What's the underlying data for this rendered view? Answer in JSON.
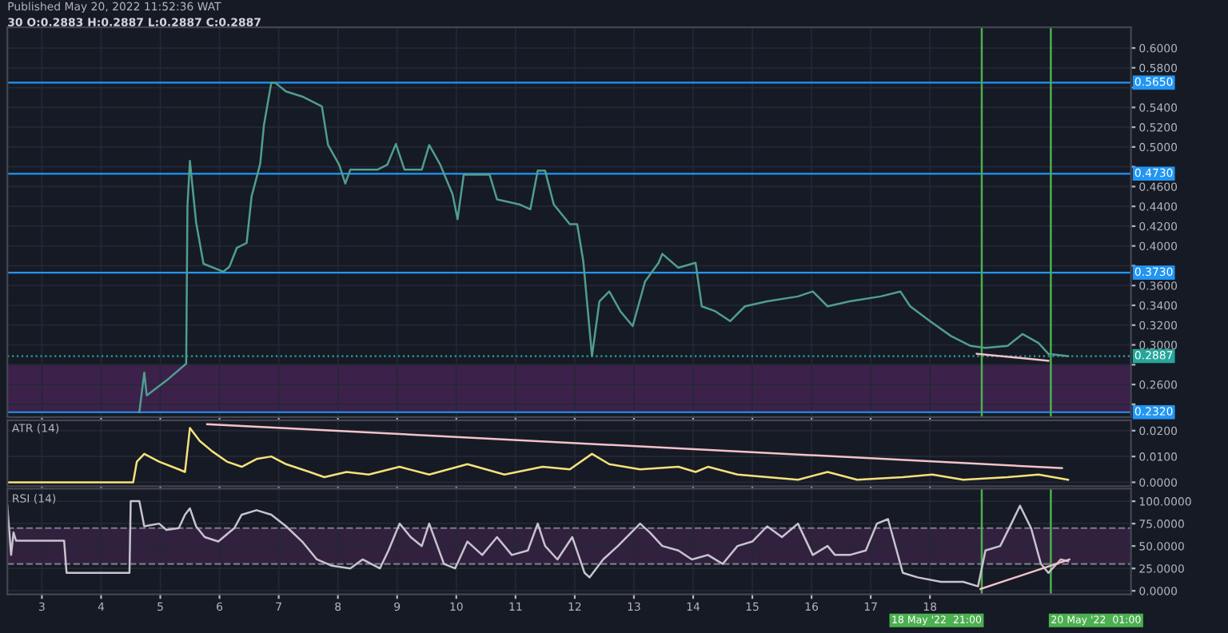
{
  "chart_data": [
    {
      "type": "line",
      "title": "Published May 20, 2022 11:52:36 WAT",
      "subtitle": "30 O:0.2883 H:0.2887 L:0.2887 C:0.2887",
      "x": [
        "2022-05-04T15:30",
        "2022-05-04T17:30",
        "2022-05-04T18:30",
        "2022-05-05T02:30",
        "2022-05-05T10:30",
        "2022-05-05T11:00",
        "2022-05-05T12:00",
        "2022-05-05T14:30",
        "2022-05-05T17:30",
        "2022-05-06T01:30",
        "2022-05-06T04:00",
        "2022-05-06T07:00",
        "2022-05-06T11:00",
        "2022-05-06T13:00",
        "2022-05-06T16:30",
        "2022-05-06T18:00",
        "2022-05-06T21:00",
        "2022-05-06T22:30",
        "2022-05-07T03:00",
        "2022-05-07T09:30",
        "2022-05-07T17:30",
        "2022-05-07T20:00",
        "2022-05-08T00:30",
        "2022-05-08T03:00",
        "2022-05-08T05:00",
        "2022-05-08T16:00",
        "2022-05-08T20:00",
        "2022-05-08T23:30",
        "2022-05-09T03:00",
        "2022-05-09T10:00",
        "2022-05-09T13:00",
        "2022-05-09T17:30",
        "2022-05-09T22:30",
        "2022-05-10T00:30",
        "2022-05-10T03:00",
        "2022-05-10T13:30",
        "2022-05-10T16:30",
        "2022-05-11T01:30",
        "2022-05-11T06:00",
        "2022-05-11T09:00",
        "2022-05-11T12:00",
        "2022-05-11T15:30",
        "2022-05-11T22:00",
        "2022-05-12T01:00",
        "2022-05-12T03:30",
        "2022-05-12T07:00",
        "2022-05-12T10:00",
        "2022-05-12T14:00",
        "2022-05-12T18:30",
        "2022-05-12T23:30",
        "2022-05-13T04:30",
        "2022-05-13T10:00",
        "2022-05-13T11:30",
        "2022-05-13T18:00",
        "2022-05-14T01:00",
        "2022-05-14T03:30",
        "2022-05-14T09:00",
        "2022-05-14T15:00",
        "2022-05-14T21:00",
        "2022-05-15T06:00",
        "2022-05-15T18:30",
        "2022-05-16T00:30",
        "2022-05-16T06:30",
        "2022-05-16T15:30",
        "2022-05-17T04:00",
        "2022-05-17T12:00",
        "2022-05-17T16:00",
        "2022-05-18T00:00",
        "2022-05-18T08:30",
        "2022-05-18T16:30",
        "2022-05-18T22:30",
        "2022-05-19T07:30",
        "2022-05-19T13:30",
        "2022-05-19T20:00",
        "2022-05-20T00:00",
        "2022-05-20T08:00"
      ],
      "series": [
        {
          "color": "#4f9e8f",
          "values": [
            0.232,
            0.272,
            0.249,
            0.264,
            0.281,
            0.44,
            0.486,
            0.424,
            0.382,
            0.374,
            0.379,
            0.398,
            0.403,
            0.45,
            0.483,
            0.522,
            0.565,
            0.565,
            0.556,
            0.551,
            0.541,
            0.502,
            0.482,
            0.463,
            0.477,
            0.477,
            0.482,
            0.503,
            0.477,
            0.477,
            0.502,
            0.482,
            0.452,
            0.427,
            0.472,
            0.472,
            0.447,
            0.442,
            0.437,
            0.476,
            0.476,
            0.442,
            0.422,
            0.422,
            0.384,
            0.2887,
            0.344,
            0.354,
            0.334,
            0.319,
            0.364,
            0.383,
            0.392,
            0.378,
            0.383,
            0.339,
            0.334,
            0.324,
            0.339,
            0.344,
            0.349,
            0.354,
            0.339,
            0.344,
            0.349,
            0.354,
            0.339,
            0.324,
            0.309,
            0.299,
            0.297,
            0.299,
            0.311,
            0.302,
            0.291,
            0.2887
          ]
        },
        {
          "type": "line",
          "color": "#f4c2c8",
          "x": [
            "2022-05-18T19:00",
            "2022-05-20T00:00"
          ],
          "values": [
            0.291,
            0.284
          ]
        }
      ],
      "xlim": [
        "2022-05-02T10:00",
        "2022-05-21T09:30"
      ],
      "ylim": [
        0.227,
        0.621
      ],
      "xticks": [
        "2022-05-03",
        "2022-05-04",
        "2022-05-05",
        "2022-05-06",
        "2022-05-07",
        "2022-05-08",
        "2022-05-09",
        "2022-05-10",
        "2022-05-11",
        "2022-05-12",
        "2022-05-13",
        "2022-05-14",
        "2022-05-15",
        "2022-05-16",
        "2022-05-17",
        "2022-05-18"
      ],
      "yticks": [
        {
          "value": 0.24,
          "label": null
        },
        {
          "value": 0.26,
          "label": "0.2600"
        },
        {
          "value": 0.28,
          "label": null
        },
        {
          "value": 0.3,
          "label": "0.3000"
        },
        {
          "value": 0.32,
          "label": "0.3200"
        },
        {
          "value": 0.34,
          "label": "0.3400"
        },
        {
          "value": 0.36,
          "label": "0.3600"
        },
        {
          "value": 0.38,
          "label": null
        },
        {
          "value": 0.4,
          "label": "0.4000"
        },
        {
          "value": 0.42,
          "label": "0.4200"
        },
        {
          "value": 0.44,
          "label": "0.4400"
        },
        {
          "value": 0.46,
          "label": "0.4600"
        },
        {
          "value": 0.48,
          "label": null
        },
        {
          "value": 0.5,
          "label": "0.5000"
        },
        {
          "value": 0.52,
          "label": "0.5200"
        },
        {
          "value": 0.54,
          "label": "0.5400"
        },
        {
          "value": 0.56,
          "label": null
        },
        {
          "value": 0.58,
          "label": "0.5800"
        },
        {
          "value": 0.6,
          "label": "0.6000"
        }
      ],
      "ref_lines": [
        {
          "axis": "y",
          "value": 0.565,
          "label": "0.5650",
          "color": "#2196f3"
        },
        {
          "axis": "y",
          "value": 0.473,
          "label": "0.4730",
          "color": "#2196f3"
        },
        {
          "axis": "y",
          "value": 0.373,
          "label": "0.3730",
          "color": "#2196f3"
        },
        {
          "axis": "y",
          "value": 0.232,
          "label": "0.2320",
          "color": "#2196f3"
        },
        {
          "axis": "y",
          "value": 0.2887,
          "label": "0.2887",
          "color": "#26a69a",
          "line_style": "dotted"
        },
        {
          "axis": "x",
          "value": "2022-05-18T21:00",
          "label": null,
          "color": "#4caf50"
        },
        {
          "axis": "x",
          "value": "2022-05-20T01:00",
          "label": null,
          "color": "#4caf50"
        }
      ],
      "bands": [
        {
          "axis": "y",
          "from": 0.232,
          "to": 0.28,
          "label": null,
          "color": "#4a2458"
        }
      ],
      "tick_labels": "y",
      "grid": true
    },
    {
      "type": "line",
      "title": "ATR (14)",
      "x": [
        "2022-05-02T10:00",
        "2022-05-04T13:00",
        "2022-05-04T14:30",
        "2022-05-04T17:30",
        "2022-05-04T23:30",
        "2022-05-05T07:30",
        "2022-05-05T10:00",
        "2022-05-05T12:00",
        "2022-05-05T16:00",
        "2022-05-05T21:00",
        "2022-05-06T03:00",
        "2022-05-06T09:00",
        "2022-05-06T15:00",
        "2022-05-06T21:00",
        "2022-05-07T03:00",
        "2022-05-07T12:30",
        "2022-05-07T18:30",
        "2022-05-08T03:30",
        "2022-05-08T12:30",
        "2022-05-09T01:00",
        "2022-05-09T13:00",
        "2022-05-10T04:30",
        "2022-05-10T19:30",
        "2022-05-11T11:00",
        "2022-05-11T22:00",
        "2022-05-12T07:00",
        "2022-05-12T14:00",
        "2022-05-13T02:30",
        "2022-05-13T18:00",
        "2022-05-14T01:00",
        "2022-05-14T06:00",
        "2022-05-14T18:00",
        "2022-05-15T18:30",
        "2022-05-16T06:30",
        "2022-05-16T18:30",
        "2022-05-17T13:00",
        "2022-05-18T01:00",
        "2022-05-18T13:30",
        "2022-05-19T07:30",
        "2022-05-19T20:00",
        "2022-05-20T08:00"
      ],
      "series": [
        {
          "color": "#f5e27a",
          "values": [
            0,
            0,
            0.008,
            0.011,
            0.008,
            0.005,
            0.004,
            0.021,
            0.016,
            0.012,
            0.008,
            0.006,
            0.009,
            0.01,
            0.007,
            0.004,
            0.002,
            0.004,
            0.003,
            0.006,
            0.003,
            0.007,
            0.003,
            0.006,
            0.005,
            0.011,
            0.007,
            0.005,
            0.006,
            0.004,
            0.006,
            0.003,
            0.001,
            0.004,
            0.001,
            0.002,
            0.003,
            0.001,
            0.002,
            0.003,
            0.001
          ]
        },
        {
          "type": "line",
          "color": "#f4c2c8",
          "x": [
            "2022-05-05T19:00",
            "2022-05-20T05:30"
          ],
          "values": [
            0.0225,
            0.0055
          ]
        }
      ],
      "xlim": [
        "2022-05-02T10:00",
        "2022-05-21T09:30"
      ],
      "ylim": [
        -0.0015,
        0.024
      ],
      "xticks": [
        "2022-05-03",
        "2022-05-04",
        "2022-05-05",
        "2022-05-06",
        "2022-05-07",
        "2022-05-08",
        "2022-05-09",
        "2022-05-10",
        "2022-05-11",
        "2022-05-12",
        "2022-05-13",
        "2022-05-14",
        "2022-05-15",
        "2022-05-16",
        "2022-05-17",
        "2022-05-18"
      ],
      "yticks": [
        {
          "value": 0,
          "label": "0.0000"
        },
        {
          "value": 0.01,
          "label": "0.0100"
        },
        {
          "value": 0.02,
          "label": "0.0200"
        }
      ],
      "tick_labels": "y",
      "grid": true
    },
    {
      "type": "line",
      "title": "RSI (14)",
      "x": [
        "2022-05-02T10:00",
        "2022-05-02T11:30",
        "2022-05-02T12:30",
        "2022-05-02T13:30",
        "2022-05-03T09:00",
        "2022-05-03T10:00",
        "2022-05-04T11:30",
        "2022-05-04T12:00",
        "2022-05-04T15:30",
        "2022-05-04T17:30",
        "2022-05-04T23:30",
        "2022-05-05T02:30",
        "2022-05-05T07:30",
        "2022-05-05T10:00",
        "2022-05-05T12:00",
        "2022-05-05T14:30",
        "2022-05-05T18:00",
        "2022-05-05T23:30",
        "2022-05-06T06:00",
        "2022-05-06T09:00",
        "2022-05-06T15:00",
        "2022-05-06T21:00",
        "2022-05-07T03:00",
        "2022-05-07T09:30",
        "2022-05-07T15:30",
        "2022-05-07T21:30",
        "2022-05-08T05:00",
        "2022-05-08T10:00",
        "2022-05-08T17:00",
        "2022-05-08T20:30",
        "2022-05-09T01:00",
        "2022-05-09T05:30",
        "2022-05-09T10:00",
        "2022-05-09T13:00",
        "2022-05-09T19:00",
        "2022-05-09T23:30",
        "2022-05-10T04:30",
        "2022-05-10T10:30",
        "2022-05-10T16:30",
        "2022-05-10T22:30",
        "2022-05-11T05:00",
        "2022-05-11T09:00",
        "2022-05-11T12:00",
        "2022-05-11T17:00",
        "2022-05-11T23:00",
        "2022-05-12T04:00",
        "2022-05-12T06:00",
        "2022-05-12T11:30",
        "2022-05-12T17:30",
        "2022-05-13T02:30",
        "2022-05-13T06:30",
        "2022-05-13T11:30",
        "2022-05-13T18:00",
        "2022-05-13T23:30",
        "2022-05-14T06:00",
        "2022-05-14T12:00",
        "2022-05-14T18:00",
        "2022-05-15T00:00",
        "2022-05-15T06:00",
        "2022-05-15T12:00",
        "2022-05-15T18:30",
        "2022-05-16T00:30",
        "2022-05-16T06:30",
        "2022-05-16T09:30",
        "2022-05-16T15:30",
        "2022-05-16T22:00",
        "2022-05-17T02:30",
        "2022-05-17T07:00",
        "2022-05-17T13:00",
        "2022-05-17T19:00",
        "2022-05-18T04:30",
        "2022-05-18T13:30",
        "2022-05-18T19:30",
        "2022-05-18T22:30",
        "2022-05-19T04:30",
        "2022-05-19T09:00",
        "2022-05-19T12:30",
        "2022-05-19T17:00",
        "2022-05-19T21:00",
        "2022-05-20T00:00",
        "2022-05-20T05:00",
        "2022-05-20T08:00"
      ],
      "series": [
        {
          "color": "#c8c3d0",
          "values": [
            95,
            40,
            65,
            56,
            56,
            20,
            20,
            100,
            100,
            72,
            75,
            68,
            70,
            85,
            92,
            72,
            60,
            55,
            70,
            85,
            90,
            85,
            72,
            55,
            35,
            28,
            25,
            35,
            25,
            45,
            75,
            60,
            50,
            75,
            30,
            25,
            55,
            40,
            60,
            40,
            45,
            75,
            50,
            35,
            60,
            20,
            15,
            35,
            50,
            75,
            65,
            50,
            45,
            35,
            40,
            30,
            50,
            55,
            72,
            60,
            75,
            40,
            50,
            40,
            40,
            45,
            75,
            80,
            20,
            15,
            10,
            10,
            5,
            45,
            50,
            75,
            95,
            70,
            30,
            20,
            35,
            33
          ]
        },
        {
          "type": "line",
          "color": "#f4c2c8",
          "x": [
            "2022-05-18T20:30",
            "2022-05-20T08:30"
          ],
          "values": [
            2,
            35
          ]
        }
      ],
      "xlim": [
        "2022-05-02T10:00",
        "2022-05-21T09:30"
      ],
      "ylim": [
        -4,
        114
      ],
      "xticks": [
        {
          "value": "2022-05-03",
          "label": "3"
        },
        {
          "value": "2022-05-04",
          "label": "4"
        },
        {
          "value": "2022-05-05",
          "label": "5"
        },
        {
          "value": "2022-05-06",
          "label": "6"
        },
        {
          "value": "2022-05-07",
          "label": "7"
        },
        {
          "value": "2022-05-08",
          "label": "8"
        },
        {
          "value": "2022-05-09",
          "label": "9"
        },
        {
          "value": "2022-05-10",
          "label": "10"
        },
        {
          "value": "2022-05-11",
          "label": "11"
        },
        {
          "value": "2022-05-12",
          "label": "12"
        },
        {
          "value": "2022-05-13",
          "label": "13"
        },
        {
          "value": "2022-05-14",
          "label": "14"
        },
        {
          "value": "2022-05-15",
          "label": "15"
        },
        {
          "value": "2022-05-16",
          "label": "16"
        },
        {
          "value": "2022-05-17",
          "label": "17"
        },
        {
          "value": "2022-05-18",
          "label": "18"
        }
      ],
      "yticks": [
        {
          "value": 0,
          "label": "0.0000"
        },
        {
          "value": 25,
          "label": "25.0000"
        },
        {
          "value": 50,
          "label": "50.0000"
        },
        {
          "value": 75,
          "label": "75.0000"
        },
        {
          "value": 100,
          "label": "100.0000"
        }
      ],
      "ref_lines": [
        {
          "axis": "y",
          "value": 70,
          "label": null,
          "color": "#787b86",
          "line_style": "dashed"
        },
        {
          "axis": "y",
          "value": 30,
          "label": null,
          "color": "#787b86",
          "line_style": "dashed"
        },
        {
          "axis": "x",
          "value": "2022-05-18T21:00",
          "label": "18 May '22  21:00",
          "color": "#4caf50"
        },
        {
          "axis": "x",
          "value": "2022-05-20T01:00",
          "label": "20 May '22  01:00",
          "color": "#4caf50"
        }
      ],
      "bands": [
        {
          "axis": "y",
          "from": 30,
          "to": 70,
          "label": null,
          "color": "#3b2447"
        }
      ],
      "grid": true
    }
  ]
}
